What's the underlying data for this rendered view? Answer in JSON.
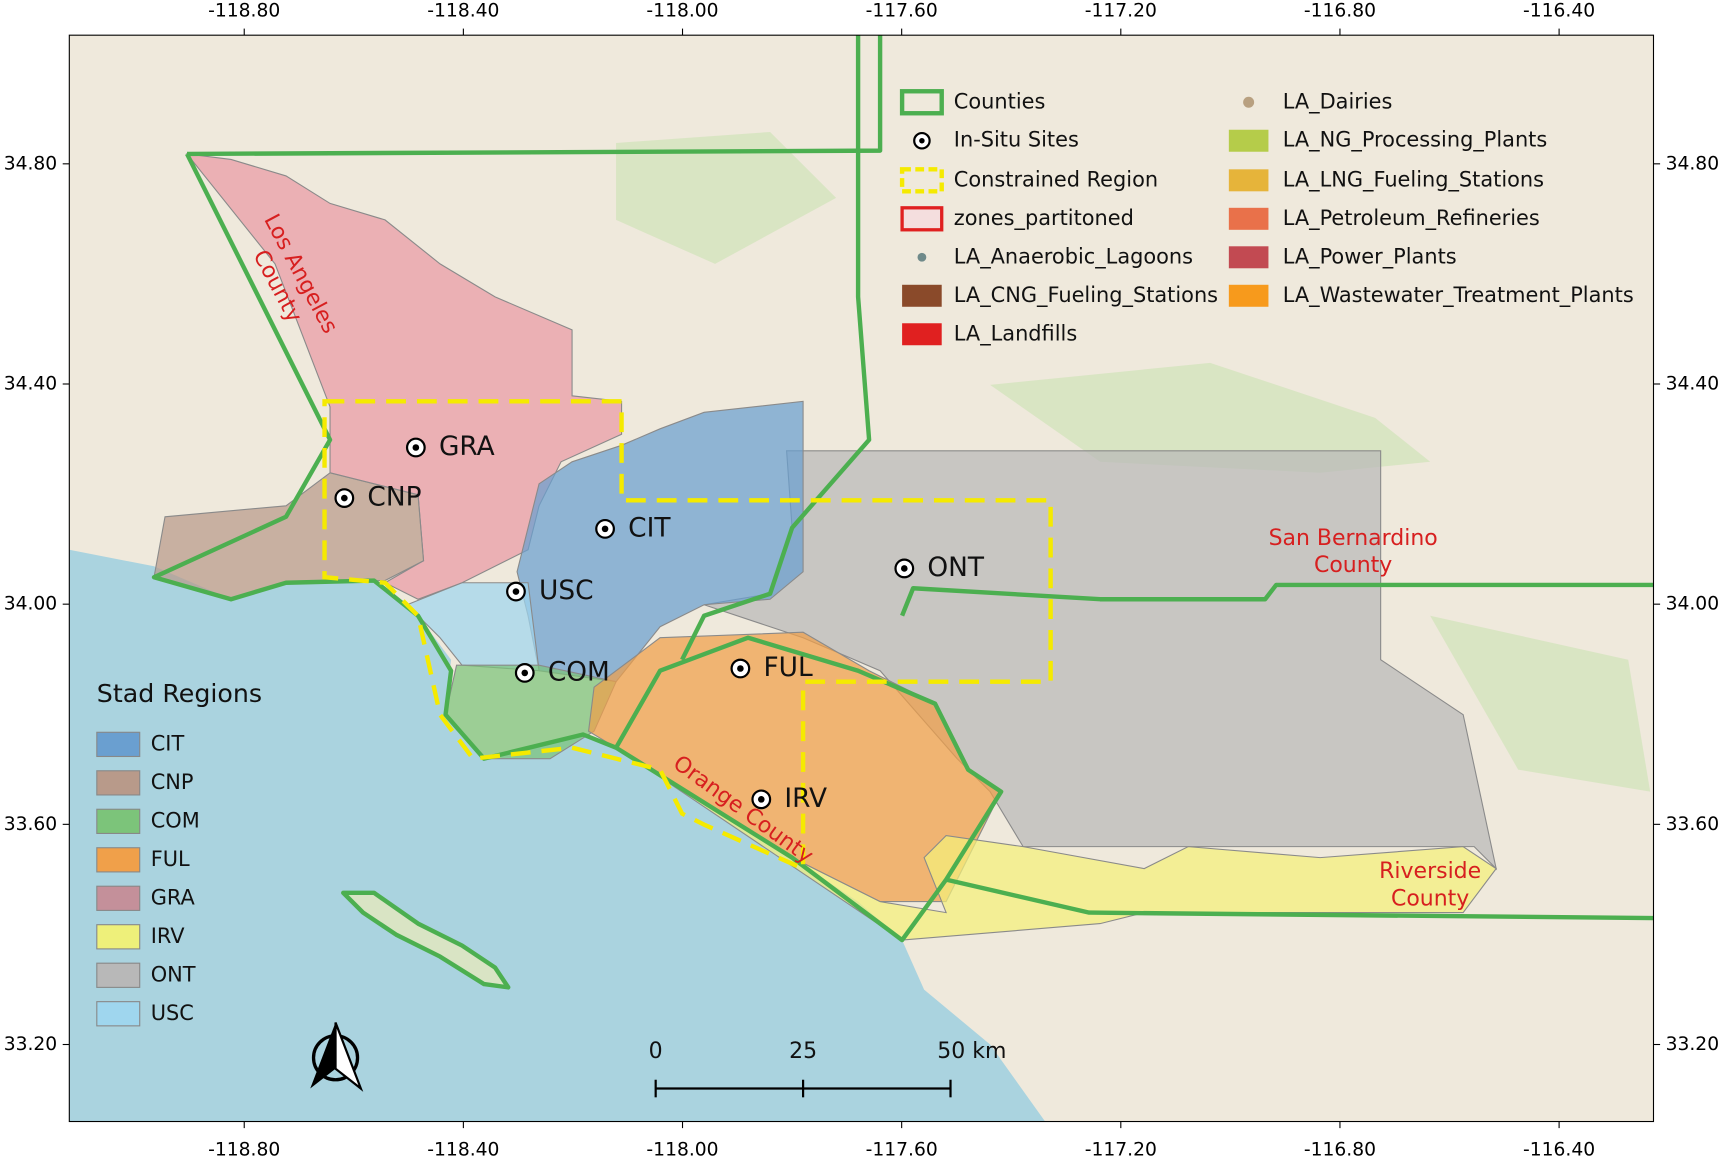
{
  "axes": {
    "lon_ticks": [
      {
        "value": -118.8,
        "label": "-118.80"
      },
      {
        "value": -118.4,
        "label": "-118.40"
      },
      {
        "value": -118.0,
        "label": "-118.00"
      },
      {
        "value": -117.6,
        "label": "-117.60"
      },
      {
        "value": -117.2,
        "label": "-117.20"
      },
      {
        "value": -116.8,
        "label": "-116.80"
      },
      {
        "value": -116.4,
        "label": "-116.40"
      }
    ],
    "lat_ticks": [
      {
        "value": 34.8,
        "label": "34.80"
      },
      {
        "value": 34.4,
        "label": "34.40"
      },
      {
        "value": 34.0,
        "label": "34.00"
      },
      {
        "value": 33.6,
        "label": "33.60"
      },
      {
        "value": 33.2,
        "label": "33.20"
      }
    ]
  },
  "legend": {
    "items": [
      "Counties",
      "In-Situ Sites",
      "Constrained Region",
      "zones_partitoned",
      "LA_Anaerobic_Lagoons",
      "LA_CNG_Fueling_Stations",
      "LA_Landfills",
      "LA_Dairies",
      "LA_NG_Processing_Plants",
      "LA_LNG_Fueling_Stations",
      "LA_Petroleum_Refineries",
      "LA_Power_Plants",
      "LA_Wastewater_Treatment_Plants"
    ]
  },
  "stad_regions": {
    "title": "Stad Regions",
    "items": [
      "CIT",
      "CNP",
      "COM",
      "FUL",
      "GRA",
      "IRV",
      "ONT",
      "USC"
    ]
  },
  "sites": [
    "GRA",
    "CNP",
    "CIT",
    "USC",
    "COM",
    "FUL",
    "ONT",
    "IRV"
  ],
  "county_labels": {
    "los_angeles": [
      "Los Angeles",
      "County"
    ],
    "san_bernardino": [
      "San Bernardino",
      "County"
    ],
    "orange": "Orange County",
    "riverside": [
      "Riverside",
      "County"
    ]
  },
  "scale_bar": [
    "0",
    "25",
    "50 km"
  ]
}
